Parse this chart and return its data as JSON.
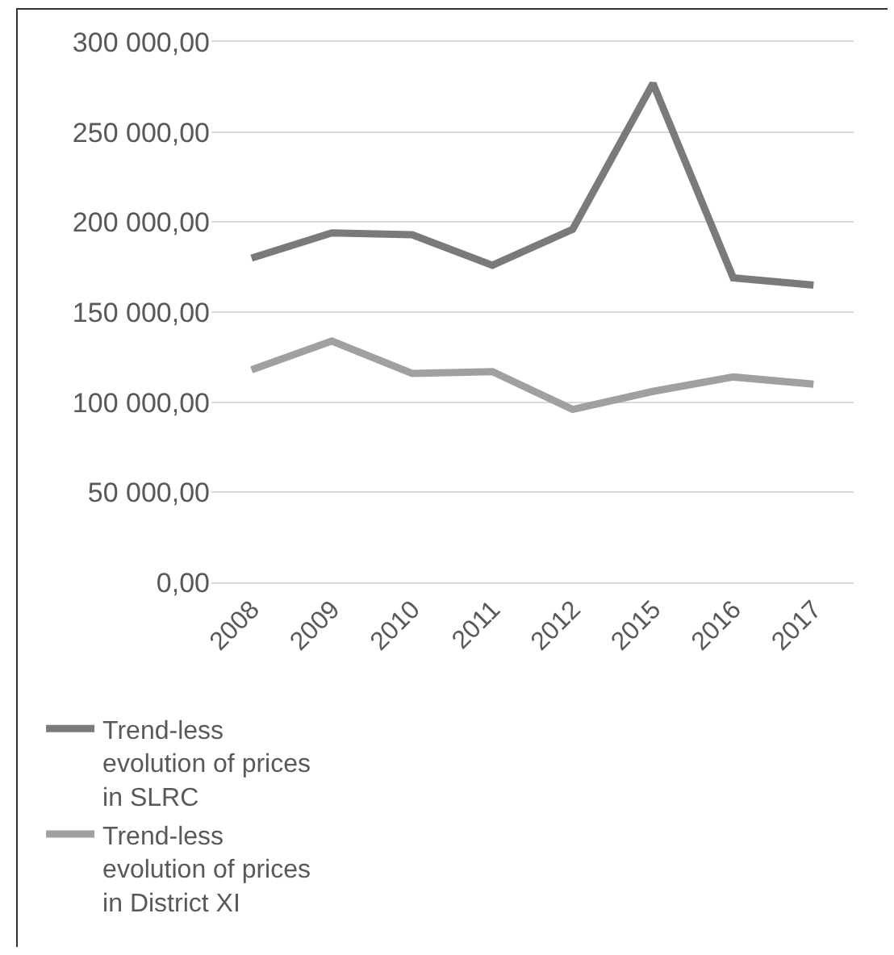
{
  "chart_data": {
    "type": "line",
    "categories": [
      "2008",
      "2009",
      "2010",
      "2011",
      "2012",
      "2015",
      "2016",
      "2017"
    ],
    "series": [
      {
        "name": "Trend-less evolution of prices in SLRC",
        "color": "#7a7a7a",
        "values": [
          180000,
          194000,
          193000,
          176000,
          196000,
          277000,
          169000,
          165000
        ]
      },
      {
        "name": "Trend-less evolution of prices in District XI",
        "color": "#a0a0a0",
        "values": [
          118000,
          134000,
          116000,
          117000,
          96000,
          106000,
          114000,
          110000
        ]
      }
    ],
    "ylim": [
      0,
      300000
    ],
    "yticks": [
      {
        "value": 0,
        "label": "0,00"
      },
      {
        "value": 50000,
        "label": "50 000,00"
      },
      {
        "value": 100000,
        "label": "100 000,00"
      },
      {
        "value": 150000,
        "label": "150 000,00"
      },
      {
        "value": 200000,
        "label": "200 000,00"
      },
      {
        "value": 250000,
        "label": "250 000,00"
      },
      {
        "value": 300000,
        "label": "300 000,00"
      }
    ],
    "grid": "y",
    "legend": "bottom",
    "marker": "none",
    "line_style": "solid"
  }
}
